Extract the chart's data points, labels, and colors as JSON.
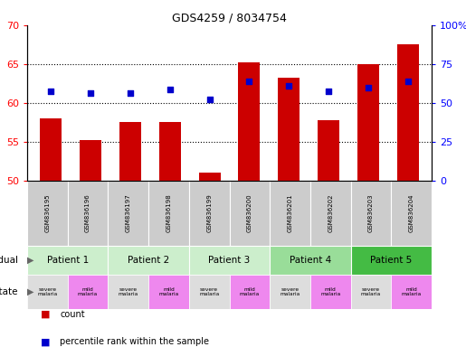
{
  "title": "GDS4259 / 8034754",
  "samples": [
    "GSM836195",
    "GSM836196",
    "GSM836197",
    "GSM836198",
    "GSM836199",
    "GSM836200",
    "GSM836201",
    "GSM836202",
    "GSM836203",
    "GSM836204"
  ],
  "count_values": [
    58.0,
    55.2,
    57.5,
    57.5,
    51.0,
    65.2,
    63.2,
    57.8,
    65.0,
    67.5
  ],
  "percentile_values": [
    61.5,
    61.3,
    61.3,
    61.8,
    60.5,
    62.8,
    62.2,
    61.5,
    62.0,
    62.8
  ],
  "y_min": 50,
  "y_max": 70,
  "y_ticks_left": [
    50,
    55,
    60,
    65,
    70
  ],
  "y_ticks_right": [
    0,
    25,
    50,
    75,
    100
  ],
  "bar_color": "#cc0000",
  "dot_color": "#0000cc",
  "patients": [
    {
      "label": "Patient 1",
      "start": 0,
      "end": 2,
      "color": "#cceecc"
    },
    {
      "label": "Patient 2",
      "start": 2,
      "end": 4,
      "color": "#cceecc"
    },
    {
      "label": "Patient 3",
      "start": 4,
      "end": 6,
      "color": "#cceecc"
    },
    {
      "label": "Patient 4",
      "start": 6,
      "end": 8,
      "color": "#99dd99"
    },
    {
      "label": "Patient 5",
      "start": 8,
      "end": 10,
      "color": "#44bb44"
    }
  ],
  "disease_states": [
    {
      "label": "severe\nmalaria",
      "color": "#dddddd",
      "col": 0
    },
    {
      "label": "mild\nmalaria",
      "color": "#ee88ee",
      "col": 1
    },
    {
      "label": "severe\nmalaria",
      "color": "#dddddd",
      "col": 2
    },
    {
      "label": "mild\nmalaria",
      "color": "#ee88ee",
      "col": 3
    },
    {
      "label": "severe\nmalaria",
      "color": "#dddddd",
      "col": 4
    },
    {
      "label": "mild\nmalaria",
      "color": "#ee88ee",
      "col": 5
    },
    {
      "label": "severe\nmalaria",
      "color": "#dddddd",
      "col": 6
    },
    {
      "label": "mild\nmalaria",
      "color": "#ee88ee",
      "col": 7
    },
    {
      "label": "severe\nmalaria",
      "color": "#dddddd",
      "col": 8
    },
    {
      "label": "mild\nmalaria",
      "color": "#ee88ee",
      "col": 9
    }
  ],
  "legend_count_color": "#cc0000",
  "legend_dot_color": "#0000cc"
}
